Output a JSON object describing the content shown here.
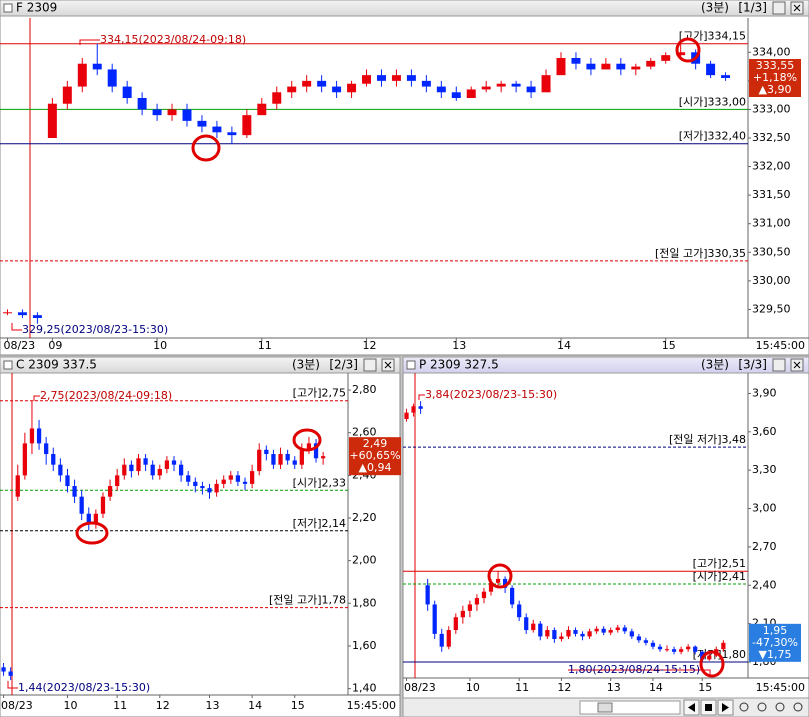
{
  "chart_data": [
    {
      "type": "candlestick",
      "title": "F 2309",
      "interval": "(3분)",
      "page": "[1/3]",
      "up_color": "#e8000b",
      "down_color": "#0026ff",
      "ylim": [
        329.0,
        334.6
      ],
      "yticks": [
        {
          "value": 329.5,
          "label": "329,50"
        },
        {
          "value": 330,
          "label": "330,00"
        },
        {
          "value": 330.5,
          "label": "330,50"
        },
        {
          "value": 331,
          "label": "331,00"
        },
        {
          "value": 331.5,
          "label": "331,50"
        },
        {
          "value": 332,
          "label": "332,00"
        },
        {
          "value": 332.5,
          "label": "332,50"
        },
        {
          "value": 333,
          "label": "333,00"
        },
        {
          "value": 333.5,
          "label": "333,50"
        },
        {
          "value": 334,
          "label": "334,00"
        }
      ],
      "xlim": [
        -0.5,
        49.5
      ],
      "xticks": [
        {
          "value": 0,
          "label": "08/23"
        },
        {
          "value": 3,
          "label": "09"
        },
        {
          "value": 10,
          "label": "10"
        },
        {
          "value": 17,
          "label": "11"
        },
        {
          "value": 24,
          "label": "12"
        },
        {
          "value": 30,
          "label": "13"
        },
        {
          "value": 37,
          "label": "14"
        },
        {
          "value": 44,
          "label": "15"
        }
      ],
      "x_end_label": "15:45:00",
      "ref_lines": [
        {
          "label": "[고가]334,15",
          "value": 334.15,
          "color": "#e00000",
          "dashed": false
        },
        {
          "label": "[시가]333,00",
          "value": 333.0,
          "color": "#00a000",
          "dashed": false
        },
        {
          "label": "[저가]332,40",
          "value": 332.4,
          "color": "#000080",
          "dashed": false
        },
        {
          "label": "[전일 고가]330,35",
          "value": 330.35,
          "color": "#e00000",
          "dashed": true
        }
      ],
      "annotations": [
        "334,15(2023/08/24-09:18)",
        "329,25(2023/08/23-15:30)"
      ],
      "last": {
        "value": 333.55,
        "label": "333,55"
      },
      "change_pct": "+1,18%",
      "change": "▲3,90",
      "last_color": "#cc2a0a",
      "candles": [
        [
          329.45,
          329.5,
          329.4,
          329.45
        ],
        [
          329.45,
          329.5,
          329.35,
          329.4
        ],
        [
          329.4,
          329.45,
          329.25,
          329.35
        ],
        [
          332.5,
          333.2,
          332.5,
          333.1
        ],
        [
          333.1,
          333.5,
          333.0,
          333.4
        ],
        [
          333.4,
          333.9,
          333.3,
          333.8
        ],
        [
          333.8,
          334.15,
          333.6,
          333.7
        ],
        [
          333.7,
          333.8,
          333.3,
          333.4
        ],
        [
          333.4,
          333.5,
          333.1,
          333.2
        ],
        [
          333.2,
          333.3,
          332.9,
          333.0
        ],
        [
          333.0,
          333.1,
          332.8,
          332.9
        ],
        [
          332.9,
          333.1,
          332.8,
          333.0
        ],
        [
          333.0,
          333.1,
          332.7,
          332.8
        ],
        [
          332.8,
          332.9,
          332.6,
          332.7
        ],
        [
          332.7,
          332.8,
          332.5,
          332.6
        ],
        [
          332.6,
          332.7,
          332.4,
          332.55
        ],
        [
          332.55,
          333.0,
          332.5,
          332.9
        ],
        [
          332.9,
          333.2,
          332.9,
          333.1
        ],
        [
          333.1,
          333.4,
          333.0,
          333.3
        ],
        [
          333.3,
          333.5,
          333.2,
          333.4
        ],
        [
          333.4,
          333.6,
          333.3,
          333.5
        ],
        [
          333.5,
          333.6,
          333.3,
          333.4
        ],
        [
          333.4,
          333.5,
          333.2,
          333.3
        ],
        [
          333.3,
          333.5,
          333.2,
          333.45
        ],
        [
          333.45,
          333.7,
          333.4,
          333.6
        ],
        [
          333.6,
          333.7,
          333.4,
          333.5
        ],
        [
          333.5,
          333.7,
          333.4,
          333.6
        ],
        [
          333.6,
          333.7,
          333.4,
          333.5
        ],
        [
          333.5,
          333.6,
          333.3,
          333.4
        ],
        [
          333.4,
          333.5,
          333.2,
          333.3
        ],
        [
          333.3,
          333.4,
          333.15,
          333.2
        ],
        [
          333.2,
          333.4,
          333.2,
          333.35
        ],
        [
          333.35,
          333.5,
          333.3,
          333.4
        ],
        [
          333.4,
          333.5,
          333.3,
          333.45
        ],
        [
          333.45,
          333.5,
          333.3,
          333.4
        ],
        [
          333.4,
          333.5,
          333.2,
          333.3
        ],
        [
          333.3,
          333.7,
          333.3,
          333.6
        ],
        [
          333.6,
          334.0,
          333.6,
          333.9
        ],
        [
          333.9,
          334.0,
          333.7,
          333.8
        ],
        [
          333.8,
          333.9,
          333.6,
          333.7
        ],
        [
          333.7,
          333.9,
          333.7,
          333.8
        ],
        [
          333.8,
          333.9,
          333.6,
          333.7
        ],
        [
          333.7,
          333.8,
          333.6,
          333.75
        ],
        [
          333.75,
          333.9,
          333.7,
          333.85
        ],
        [
          333.85,
          334.0,
          333.8,
          333.95
        ],
        [
          333.95,
          334.15,
          333.9,
          334.0
        ],
        [
          334.0,
          334.05,
          333.7,
          333.8
        ],
        [
          333.8,
          333.85,
          333.55,
          333.6
        ],
        [
          333.6,
          333.65,
          333.5,
          333.55
        ]
      ]
    },
    {
      "type": "candlestick",
      "title": "C 2309 337.5",
      "interval": "(3분)",
      "page": "[2/3]",
      "up_color": "#e8000b",
      "down_color": "#0026ff",
      "ylim": [
        1.37,
        2.88
      ],
      "yticks": [
        {
          "value": 1.4,
          "label": "1,40"
        },
        {
          "value": 1.6,
          "label": "1,60"
        },
        {
          "value": 1.8,
          "label": "1,80"
        },
        {
          "value": 2.0,
          "label": "2,00"
        },
        {
          "value": 2.2,
          "label": "2,20"
        },
        {
          "value": 2.4,
          "label": "2,40"
        },
        {
          "value": 2.6,
          "label": "2,60"
        },
        {
          "value": 2.8,
          "label": "2,80"
        }
      ],
      "xlim": [
        -0.5,
        48.5
      ],
      "xticks": [
        {
          "value": 0,
          "label": "08/23"
        },
        {
          "value": 9,
          "label": "10"
        },
        {
          "value": 16,
          "label": "11"
        },
        {
          "value": 22,
          "label": "12"
        },
        {
          "value": 29,
          "label": "13"
        },
        {
          "value": 35,
          "label": "14"
        },
        {
          "value": 41,
          "label": "15"
        }
      ],
      "x_end_label": "15:45:00",
      "ref_lines": [
        {
          "label": "[고가]2,75",
          "value": 2.75,
          "color": "#e00000",
          "dashed": true
        },
        {
          "label": "[시가]2,33",
          "value": 2.33,
          "color": "#00a000",
          "dashed": true
        },
        {
          "label": "[저가]2,14",
          "value": 2.14,
          "color": "#000000",
          "dashed": true
        },
        {
          "label": "[전일 고가]1,78",
          "value": 1.78,
          "color": "#e00000",
          "dashed": true
        }
      ],
      "annotations": [
        "2,75(2023/08/24-09:18)",
        "1,44(2023/08/23-15:30)"
      ],
      "last": {
        "value": 2.49,
        "label": "2,49"
      },
      "change_pct": "+60,65%",
      "change": "▲0,94",
      "last_color": "#cc2a0a",
      "candles": [
        [
          1.5,
          1.52,
          1.46,
          1.48
        ],
        [
          1.48,
          1.5,
          1.44,
          1.46
        ],
        [
          2.3,
          2.45,
          2.28,
          2.4
        ],
        [
          2.4,
          2.6,
          2.38,
          2.55
        ],
        [
          2.55,
          2.75,
          2.5,
          2.62
        ],
        [
          2.62,
          2.66,
          2.52,
          2.55
        ],
        [
          2.55,
          2.58,
          2.45,
          2.5
        ],
        [
          2.5,
          2.53,
          2.42,
          2.45
        ],
        [
          2.45,
          2.48,
          2.37,
          2.4
        ],
        [
          2.4,
          2.43,
          2.32,
          2.35
        ],
        [
          2.35,
          2.38,
          2.27,
          2.3
        ],
        [
          2.3,
          2.33,
          2.19,
          2.22
        ],
        [
          2.22,
          2.25,
          2.14,
          2.17
        ],
        [
          2.17,
          2.24,
          2.15,
          2.22
        ],
        [
          2.22,
          2.32,
          2.2,
          2.3
        ],
        [
          2.3,
          2.38,
          2.28,
          2.35
        ],
        [
          2.35,
          2.43,
          2.33,
          2.4
        ],
        [
          2.4,
          2.48,
          2.38,
          2.45
        ],
        [
          2.45,
          2.47,
          2.39,
          2.42
        ],
        [
          2.42,
          2.5,
          2.4,
          2.48
        ],
        [
          2.48,
          2.5,
          2.42,
          2.45
        ],
        [
          2.45,
          2.47,
          2.38,
          2.4
        ],
        [
          2.4,
          2.45,
          2.38,
          2.43
        ],
        [
          2.43,
          2.49,
          2.41,
          2.47
        ],
        [
          2.47,
          2.49,
          2.42,
          2.45
        ],
        [
          2.45,
          2.47,
          2.37,
          2.4
        ],
        [
          2.4,
          2.42,
          2.35,
          2.37
        ],
        [
          2.37,
          2.39,
          2.32,
          2.35
        ],
        [
          2.35,
          2.37,
          2.31,
          2.34
        ],
        [
          2.34,
          2.36,
          2.29,
          2.32
        ],
        [
          2.32,
          2.38,
          2.3,
          2.36
        ],
        [
          2.36,
          2.4,
          2.34,
          2.38
        ],
        [
          2.38,
          2.42,
          2.36,
          2.4
        ],
        [
          2.4,
          2.42,
          2.35,
          2.37
        ],
        [
          2.37,
          2.39,
          2.33,
          2.36
        ],
        [
          2.36,
          2.45,
          2.34,
          2.42
        ],
        [
          2.42,
          2.55,
          2.4,
          2.52
        ],
        [
          2.52,
          2.54,
          2.47,
          2.5
        ],
        [
          2.5,
          2.52,
          2.43,
          2.45
        ],
        [
          2.45,
          2.53,
          2.43,
          2.5
        ],
        [
          2.5,
          2.52,
          2.45,
          2.47
        ],
        [
          2.47,
          2.49,
          2.43,
          2.45
        ],
        [
          2.45,
          2.55,
          2.43,
          2.52
        ],
        [
          2.52,
          2.58,
          2.5,
          2.55
        ],
        [
          2.55,
          2.57,
          2.46,
          2.48
        ],
        [
          2.48,
          2.51,
          2.45,
          2.49
        ]
      ]
    },
    {
      "type": "candlestick",
      "title": "P 2309 327.5",
      "interval": "(3분)",
      "page": "[3/3]",
      "up_color": "#e8000b",
      "down_color": "#0026ff",
      "ylim": [
        1.675,
        4.06
      ],
      "yticks": [
        {
          "value": 1.8,
          "label": "1,80"
        },
        {
          "value": 2.1,
          "label": "2,10"
        },
        {
          "value": 2.4,
          "label": "2,40"
        },
        {
          "value": 2.7,
          "label": "2,70"
        },
        {
          "value": 3.0,
          "label": "3,00"
        },
        {
          "value": 3.3,
          "label": "3,30"
        },
        {
          "value": 3.6,
          "label": "3,60"
        },
        {
          "value": 3.9,
          "label": "3,90"
        }
      ],
      "xlim": [
        -0.5,
        48.5
      ],
      "xticks": [
        {
          "value": 0,
          "label": "08/23"
        },
        {
          "value": 9,
          "label": "10"
        },
        {
          "value": 16,
          "label": "11"
        },
        {
          "value": 22,
          "label": "12"
        },
        {
          "value": 29,
          "label": "13"
        },
        {
          "value": 35,
          "label": "14"
        },
        {
          "value": 42,
          "label": "15"
        }
      ],
      "x_end_label": "15:45:00",
      "ref_lines": [
        {
          "label": "[전일 저가]3,48",
          "value": 3.48,
          "color": "#000080",
          "dashed": true
        },
        {
          "label": "[고가]2,51",
          "value": 2.51,
          "color": "#e00000",
          "dashed": false
        },
        {
          "label": "[시가]2,41",
          "value": 2.41,
          "color": "#00a000",
          "dashed": true
        },
        {
          "label": "[저가]1,80",
          "value": 1.8,
          "color": "#000080",
          "dashed": false
        }
      ],
      "annotations": [
        "3,84(2023/08/23-15:30)",
        "1,80(2023/08/24-15:15)"
      ],
      "last": {
        "value": 1.95,
        "label": "1,95"
      },
      "change_pct": "-47,30%",
      "change": "▼1,75",
      "last_color": "#2a7de1",
      "candles": [
        [
          3.7,
          3.78,
          3.68,
          3.75
        ],
        [
          3.75,
          3.82,
          3.72,
          3.8
        ],
        [
          3.8,
          3.84,
          3.74,
          3.78
        ],
        [
          2.4,
          2.45,
          2.2,
          2.25
        ],
        [
          2.25,
          2.28,
          1.98,
          2.02
        ],
        [
          2.02,
          2.06,
          1.88,
          1.92
        ],
        [
          1.92,
          2.08,
          1.9,
          2.05
        ],
        [
          2.05,
          2.18,
          2.02,
          2.15
        ],
        [
          2.15,
          2.24,
          2.1,
          2.2
        ],
        [
          2.2,
          2.28,
          2.15,
          2.25
        ],
        [
          2.25,
          2.33,
          2.2,
          2.3
        ],
        [
          2.3,
          2.38,
          2.26,
          2.35
        ],
        [
          2.35,
          2.45,
          2.32,
          2.42
        ],
        [
          2.42,
          2.51,
          2.38,
          2.45
        ],
        [
          2.45,
          2.47,
          2.34,
          2.38
        ],
        [
          2.38,
          2.4,
          2.22,
          2.25
        ],
        [
          2.25,
          2.28,
          2.12,
          2.15
        ],
        [
          2.15,
          2.18,
          2.02,
          2.05
        ],
        [
          2.05,
          2.13,
          2.03,
          2.1
        ],
        [
          2.1,
          2.12,
          1.97,
          2.0
        ],
        [
          2.0,
          2.08,
          1.98,
          2.05
        ],
        [
          2.05,
          2.07,
          1.95,
          1.98
        ],
        [
          1.98,
          2.03,
          1.96,
          2.0
        ],
        [
          2.0,
          2.08,
          1.98,
          2.05
        ],
        [
          2.05,
          2.07,
          2.0,
          2.02
        ],
        [
          2.02,
          2.04,
          1.97,
          2.0
        ],
        [
          2.0,
          2.06,
          1.98,
          2.04
        ],
        [
          2.04,
          2.08,
          2.02,
          2.06
        ],
        [
          2.06,
          2.08,
          2.01,
          2.03
        ],
        [
          2.03,
          2.07,
          2.01,
          2.05
        ],
        [
          2.05,
          2.09,
          2.03,
          2.07
        ],
        [
          2.07,
          2.09,
          2.02,
          2.04
        ],
        [
          2.04,
          2.06,
          1.98,
          2.0
        ],
        [
          2.0,
          2.02,
          1.95,
          1.97
        ],
        [
          1.97,
          1.99,
          1.93,
          1.95
        ],
        [
          1.95,
          1.97,
          1.9,
          1.92
        ],
        [
          1.92,
          1.94,
          1.88,
          1.9
        ],
        [
          1.9,
          1.93,
          1.88,
          1.9
        ],
        [
          1.9,
          1.92,
          1.86,
          1.88
        ],
        [
          1.88,
          1.92,
          1.86,
          1.9
        ],
        [
          1.9,
          1.94,
          1.88,
          1.92
        ],
        [
          1.92,
          1.93,
          1.86,
          1.88
        ],
        [
          1.88,
          1.89,
          1.8,
          1.82
        ],
        [
          1.82,
          1.87,
          1.81,
          1.85
        ],
        [
          1.85,
          1.92,
          1.84,
          1.9
        ],
        [
          1.9,
          1.97,
          1.88,
          1.95
        ]
      ]
    }
  ]
}
